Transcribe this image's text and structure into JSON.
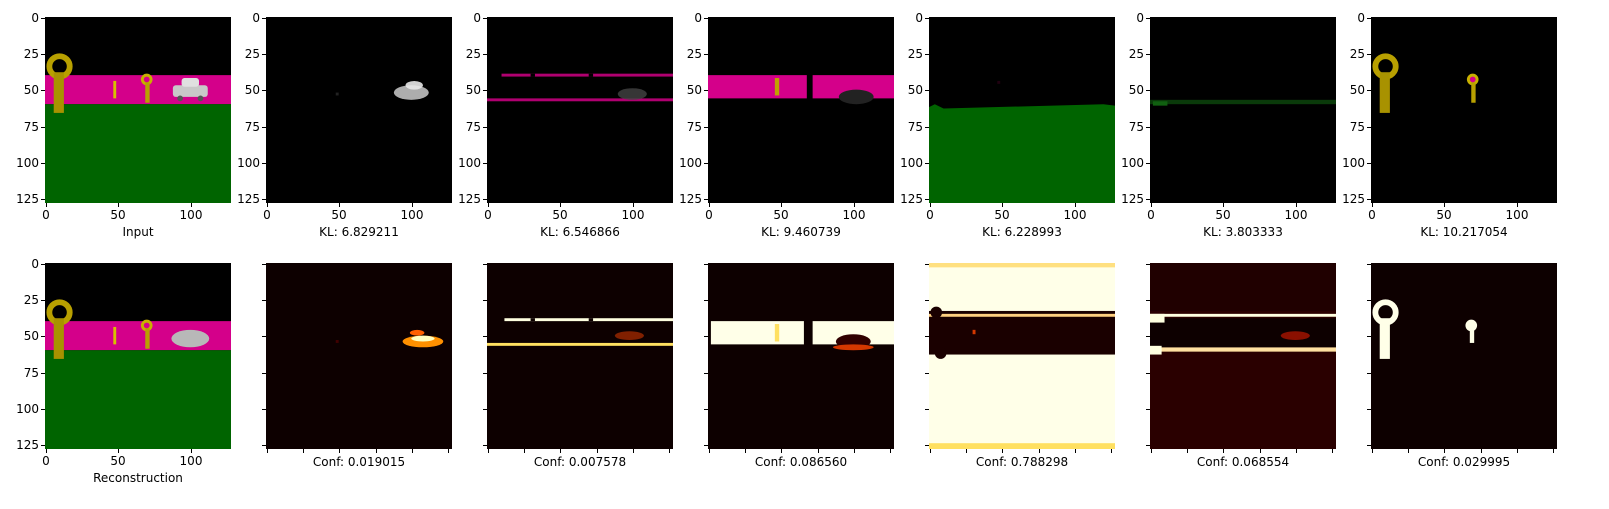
{
  "row1": {
    "y_ticks": [
      "0",
      "25",
      "50",
      "75",
      "100",
      "125"
    ],
    "x_ticks": [
      "0",
      "50",
      "100"
    ],
    "captions": [
      "Input",
      "KL: 6.829211",
      "KL: 6.546866",
      "KL: 9.460739",
      "KL: 6.228993",
      "KL: 3.803333",
      "KL: 10.217054"
    ]
  },
  "row2": {
    "y_ticks": [
      "0",
      "25",
      "50",
      "75",
      "100",
      "125"
    ],
    "x_ticks": [
      "0",
      "50",
      "100"
    ],
    "captions": [
      "Reconstruction",
      "Conf: 0.019015",
      "Conf: 0.007578",
      "Conf: 0.086560",
      "Conf: 0.788298",
      "Conf: 0.068554",
      "Conf: 0.029995"
    ]
  },
  "colors": {
    "sky": "#000000",
    "wall": "#d4008a",
    "ground": "#006400",
    "key": "#b8a000",
    "car": "#c8c8c8",
    "heat_low": "#0d0000",
    "heat_mid": "#d43800",
    "heat_high": "#ffffe0"
  }
}
